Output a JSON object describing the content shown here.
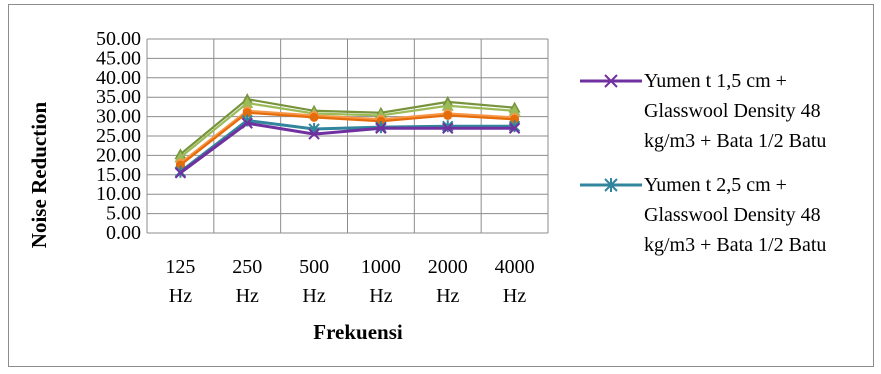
{
  "chart_data": {
    "type": "line",
    "title": "",
    "xlabel": "Frekuensi",
    "ylabel": "Noise Reduction",
    "categories": [
      [
        "125",
        "Hz"
      ],
      [
        "250",
        "Hz"
      ],
      [
        "500",
        "Hz"
      ],
      [
        "1000",
        "Hz"
      ],
      [
        "2000",
        "Hz"
      ],
      [
        "4000",
        "Hz"
      ]
    ],
    "ylim": [
      0,
      50
    ],
    "yticks": [
      "0.00",
      "5.00",
      "10.00",
      "15.00",
      "20.00",
      "25.00",
      "30.00",
      "35.00",
      "40.00",
      "45.00",
      "50.00"
    ],
    "grid": true,
    "legend_position": "right",
    "series": [
      {
        "name": "Yumen t 1,5 cm + Glasswool Density 48 kg/m3 + Bata 1/2 Batu",
        "values": [
          15.5,
          28.3,
          25.5,
          27.0,
          27.0,
          27.0
        ],
        "color": "#7030a0",
        "marker": "x",
        "in_legend": true
      },
      {
        "name": "Yumen t 2,5 cm + Glasswool Density 48 kg/m3 + Bata 1/2 Batu",
        "values": [
          15.8,
          29.0,
          26.8,
          27.3,
          27.5,
          27.5
        ],
        "color": "#31859c",
        "marker": "asterisk",
        "in_legend": true
      },
      {
        "values": [
          17.5,
          31.0,
          29.8,
          28.8,
          30.3,
          29.3
        ],
        "color": "#e46c0a",
        "marker": "circle",
        "in_legend": false
      },
      {
        "values": [
          18.0,
          31.5,
          30.3,
          29.3,
          30.8,
          29.8
        ],
        "color": "#f79646",
        "marker": "circle",
        "in_legend": false
      },
      {
        "values": [
          19.5,
          33.5,
          30.8,
          30.3,
          32.8,
          31.5
        ],
        "color": "#9bbb59",
        "marker": "triangle",
        "in_legend": false
      },
      {
        "values": [
          20.3,
          34.5,
          31.5,
          31.0,
          33.8,
          32.3
        ],
        "color": "#77933c",
        "marker": "triangle",
        "in_legend": false
      }
    ]
  }
}
